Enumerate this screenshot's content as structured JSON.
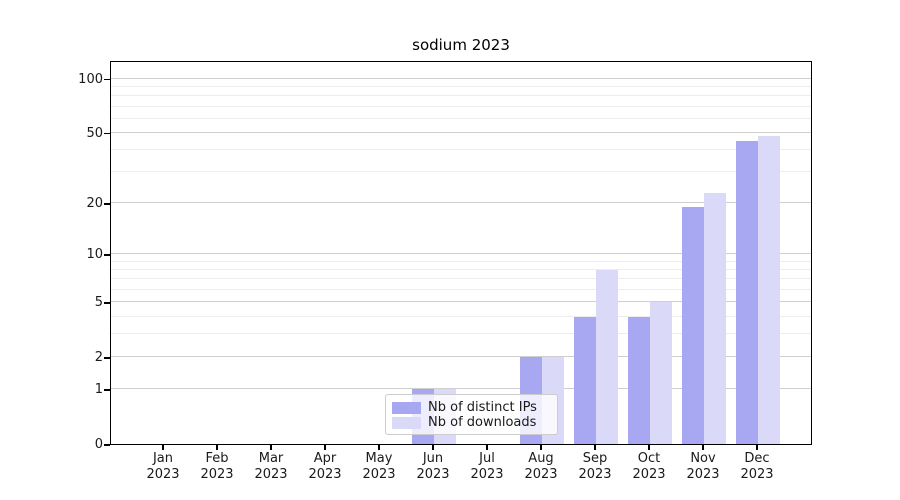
{
  "title": "sodium 2023",
  "chart_data": {
    "type": "bar",
    "title": "sodium 2023",
    "months": [
      "Jan",
      "Feb",
      "Mar",
      "Apr",
      "May",
      "Jun",
      "Jul",
      "Aug",
      "Sep",
      "Oct",
      "Nov",
      "Dec"
    ],
    "year_label": "2023",
    "series": [
      {
        "name": "Nb of distinct IPs",
        "color": "#a7a7f2",
        "values": [
          0,
          0,
          0,
          0,
          0,
          1,
          0,
          2,
          4,
          4,
          19,
          45
        ]
      },
      {
        "name": "Nb of downloads",
        "color": "#dadaf8",
        "values": [
          0,
          0,
          0,
          0,
          0,
          1,
          0,
          2,
          8,
          5,
          23,
          48
        ]
      }
    ],
    "y_scale": "log1p",
    "y_ticks": [
      0,
      1,
      2,
      5,
      10,
      20,
      50,
      100
    ],
    "y_minor_gridlines": [
      3,
      4,
      6,
      7,
      8,
      9,
      30,
      40,
      60,
      70,
      80,
      90
    ],
    "y_axis_max": 127,
    "ylim": [
      0,
      127
    ],
    "xlabel": "",
    "ylabel": "",
    "grid": true,
    "legend_position": "lower-center-inside"
  },
  "colors": {
    "grid_major": "#cfcfcf",
    "grid_minor": "#ededed",
    "axis": "#000000",
    "text": "#1a1a1a",
    "legend_border": "#cccccc"
  }
}
